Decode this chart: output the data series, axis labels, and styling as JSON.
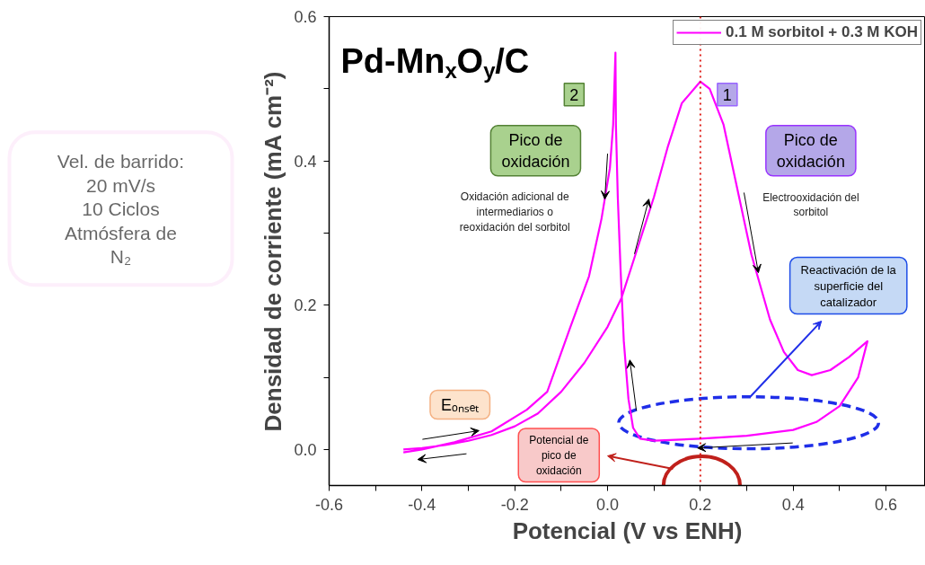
{
  "chart_data": {
    "type": "line",
    "xlabel": "Potencial (V vs ENH)",
    "ylabel": "Densidad de corriente (mA cm⁻²)",
    "xlim": [
      -0.6,
      0.685
    ],
    "ylim": [
      -0.05,
      0.6
    ],
    "xticks": [
      {
        "value": -0.6,
        "label": "-0.6"
      },
      {
        "value": -0.5,
        "label": null
      },
      {
        "value": -0.4,
        "label": "-0.4"
      },
      {
        "value": -0.3,
        "label": null
      },
      {
        "value": -0.2,
        "label": "-0.2"
      },
      {
        "value": -0.1,
        "label": null
      },
      {
        "value": 0,
        "label": "0.0"
      },
      {
        "value": 0.1,
        "label": null
      },
      {
        "value": 0.2,
        "label": "0.2"
      },
      {
        "value": 0.3,
        "label": null
      },
      {
        "value": 0.4,
        "label": "0.4"
      },
      {
        "value": 0.5,
        "label": null
      },
      {
        "value": 0.6,
        "label": "0.6"
      }
    ],
    "yticks": [
      {
        "value": 0,
        "label": "0.0"
      },
      {
        "value": 0.1,
        "label": null
      },
      {
        "value": 0.2,
        "label": "0.2"
      },
      {
        "value": 0.3,
        "label": null
      },
      {
        "value": 0.4,
        "label": "0.4"
      },
      {
        "value": 0.5,
        "label": null
      },
      {
        "value": 0.6,
        "label": "0.6"
      }
    ],
    "grid": false,
    "legend": "top right",
    "marker": "none",
    "line_style": "solid",
    "series": [
      {
        "name": "0.1 M sorbitol + 0.3 M KOH",
        "color": "#ff00ff",
        "x": [
          -0.44,
          -0.4,
          -0.35,
          -0.3,
          -0.25,
          -0.2,
          -0.15,
          -0.1,
          -0.05,
          0.0,
          0.03,
          0.06,
          0.1,
          0.13,
          0.16,
          0.2,
          0.22,
          0.25,
          0.28,
          0.31,
          0.35,
          0.38,
          0.41,
          0.44,
          0.48,
          0.52,
          0.56,
          0.54,
          0.5,
          0.45,
          0.4,
          0.3,
          0.2,
          0.1,
          0.07,
          0.055,
          0.045,
          0.035,
          0.028,
          0.022,
          0.018,
          0.017,
          0.012,
          0.005,
          -0.013,
          -0.04,
          -0.08,
          -0.13,
          -0.174,
          -0.25,
          -0.33,
          -0.4,
          -0.44
        ],
        "values": [
          0.0,
          0.002,
          0.006,
          0.012,
          0.02,
          0.032,
          0.05,
          0.08,
          0.12,
          0.17,
          0.21,
          0.27,
          0.35,
          0.42,
          0.48,
          0.51,
          0.5,
          0.45,
          0.36,
          0.27,
          0.18,
          0.135,
          0.11,
          0.103,
          0.11,
          0.128,
          0.15,
          0.1,
          0.06,
          0.038,
          0.027,
          0.019,
          0.015,
          0.012,
          0.015,
          0.03,
          0.07,
          0.15,
          0.25,
          0.35,
          0.45,
          0.55,
          0.45,
          0.39,
          0.32,
          0.24,
          0.17,
          0.08,
          0.055,
          0.025,
          0.01,
          0.0,
          -0.004
        ]
      }
    ],
    "ref_lines": [
      {
        "axis": "x",
        "value": 0.2,
        "label": null,
        "color": "#e0201b",
        "line_style": "dotted"
      }
    ],
    "annotations": [
      "Pd-Mn$_{x}$O$_{y}$/C",
      "2",
      "1",
      "Pico de\noxidación",
      "Pico de\noxidación",
      "Oxidación adicional de\nintermediarios o\nreoxidación del sorbitol",
      "Electrooxidación del\nsorbitol",
      "Reactivación de la\nsuperficie del\ncatalizador",
      "Eₒₙₛₑₜ",
      "Potencial de\npico de\noxidación",
      "Vel. de barrido:\n20 mV/s\n10 Ciclos\nAtmósfera de\nN₂"
    ]
  }
}
